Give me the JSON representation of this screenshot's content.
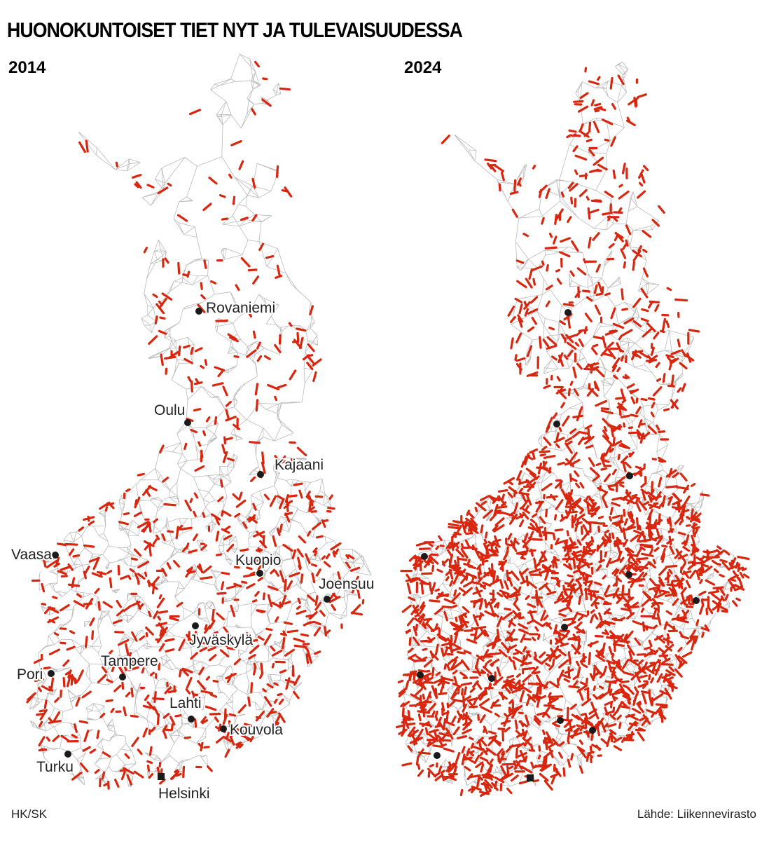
{
  "title": "HUONOKUNTOISET TIET NYT JA TULEVAISUUDESSA",
  "maps": [
    {
      "year": "2014",
      "cities": [
        "Rovaniemi",
        "Oulu",
        "Kajaani",
        "Vaasa",
        "Kuopio",
        "Joensuu",
        "Jyväskylä",
        "Tampere",
        "Pori",
        "Lahti",
        "Kouvola",
        "Turku",
        "Helsinki"
      ]
    },
    {
      "year": "2024"
    }
  ],
  "credit": "HK/SK",
  "source": "Lähde: Liikennevirasto"
}
